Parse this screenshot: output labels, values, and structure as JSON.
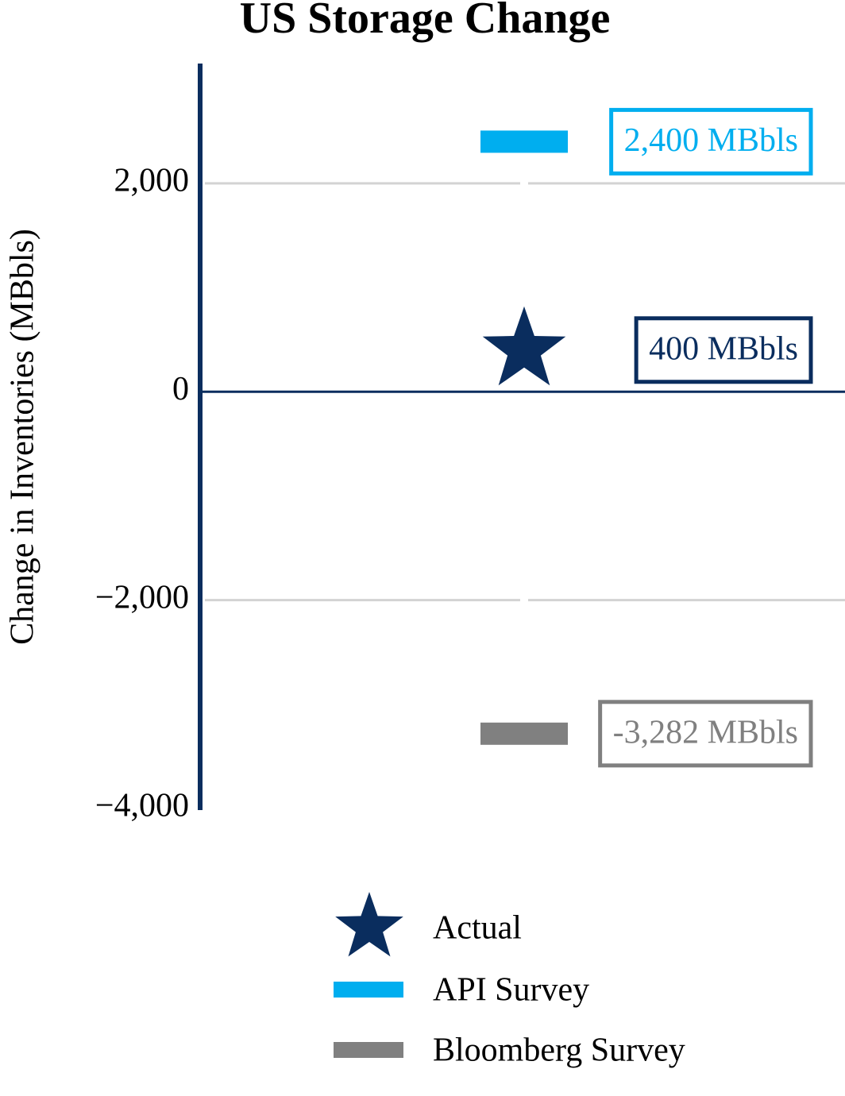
{
  "chart_data": {
    "type": "scatter",
    "title": "US Storage Change",
    "y_label": "Change in Inventories (MBbls)",
    "ylim": [
      -4000,
      3150
    ],
    "yticks": [
      {
        "value": -4000,
        "label": "−4,000"
      },
      {
        "value": -2000,
        "label": "−2,000"
      },
      0,
      {
        "value": 2000,
        "label": "2,000"
      }
    ],
    "grid": true,
    "series": [
      {
        "name": "Actual",
        "color": "#0a2d5e",
        "marker": "star",
        "values": [
          400
        ],
        "value_labels": [
          "400 MBbls"
        ]
      },
      {
        "name": "API Survey",
        "color": "#00aeef",
        "marker": "bar",
        "values": [
          2400
        ],
        "value_labels": [
          "2,400 MBbls"
        ]
      },
      {
        "name": "Bloomberg Survey",
        "color": "#808080",
        "marker": "bar",
        "values": [
          -3282
        ],
        "value_labels": [
          "-3,282 MBbls"
        ]
      }
    ]
  }
}
